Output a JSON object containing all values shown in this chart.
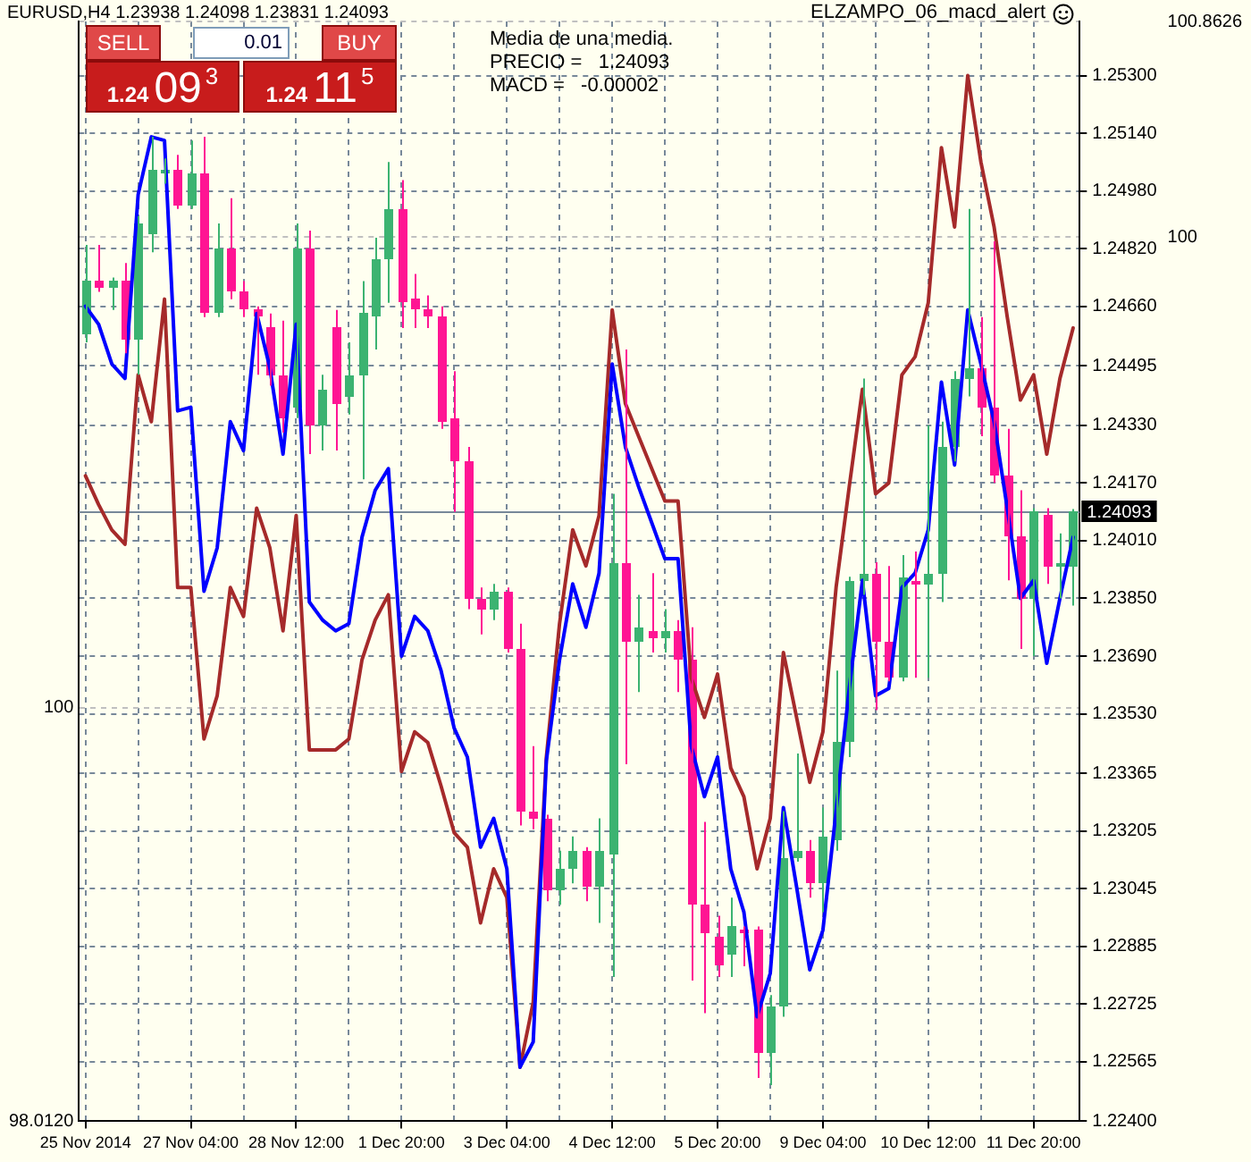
{
  "chart_data": {
    "type": "candlestick",
    "title": "EURUSD,H4 1.23938 1.24098 1.23831 1.24093",
    "categories": [
      "25 Nov 2014",
      null,
      null,
      null,
      null,
      null,
      null,
      null,
      "27 Nov 04:00",
      null,
      null,
      null,
      null,
      null,
      null,
      null,
      "28 Nov 12:00",
      null,
      null,
      null,
      null,
      null,
      null,
      null,
      "1 Dec 20:00",
      null,
      null,
      null,
      null,
      null,
      null,
      null,
      "3 Dec 04:00",
      null,
      null,
      null,
      null,
      null,
      null,
      null,
      "4 Dec 12:00",
      null,
      null,
      null,
      null,
      null,
      null,
      null,
      "5 Dec 20:00",
      null,
      null,
      null,
      null,
      null,
      null,
      null,
      "9 Dec 04:00",
      null,
      null,
      null,
      null,
      null,
      null,
      null,
      "10 Dec 12:00",
      null,
      null,
      null,
      null,
      null,
      null,
      null,
      "11 Dec 20:00",
      null,
      null,
      null
    ],
    "ohlc": [
      [
        1.2458,
        1.2483,
        1.2456,
        1.2473
      ],
      [
        1.2473,
        1.2483,
        1.247,
        1.2471
      ],
      [
        1.2471,
        1.2474,
        1.2465,
        1.2473
      ],
      [
        1.2473,
        1.2478,
        1.2453,
        1.2457
      ],
      [
        1.2457,
        1.2491,
        1.2447,
        1.2489
      ],
      [
        1.2486,
        1.2513,
        1.2481,
        1.2504
      ],
      [
        1.2503,
        1.2507,
        1.25,
        1.2504
      ],
      [
        1.2504,
        1.2508,
        1.2493,
        1.2494
      ],
      [
        1.2494,
        1.2512,
        1.2493,
        1.2503
      ],
      [
        1.2503,
        1.2513,
        1.2463,
        1.2464
      ],
      [
        1.2464,
        1.2489,
        1.2463,
        1.2482
      ],
      [
        1.2482,
        1.2496,
        1.2468,
        1.247
      ],
      [
        1.247,
        1.2473,
        1.2463,
        1.2465
      ],
      [
        1.2465,
        1.2466,
        1.2447,
        1.2463
      ],
      [
        1.246,
        1.2464,
        1.2444,
        1.2447
      ],
      [
        1.2447,
        1.2462,
        1.2431,
        1.2435
      ],
      [
        1.2438,
        1.2489,
        1.2435,
        1.2482
      ],
      [
        1.2482,
        1.2487,
        1.2425,
        1.2433
      ],
      [
        1.2433,
        1.2447,
        1.2426,
        1.2443
      ],
      [
        1.246,
        1.2465,
        1.2426,
        1.2439
      ],
      [
        1.2441,
        1.2456,
        1.2436,
        1.2447
      ],
      [
        1.2447,
        1.2473,
        1.2418,
        1.2464
      ],
      [
        1.2463,
        1.2485,
        1.2454,
        1.2479
      ],
      [
        1.2479,
        1.2506,
        1.2467,
        1.2493
      ],
      [
        1.2493,
        1.2501,
        1.246,
        1.2467
      ],
      [
        1.2468,
        1.2475,
        1.246,
        1.2465
      ],
      [
        1.2465,
        1.2469,
        1.246,
        1.2463
      ],
      [
        1.2463,
        1.2466,
        1.2432,
        1.2434
      ],
      [
        1.2435,
        1.2448,
        1.2409,
        1.2423
      ],
      [
        1.2423,
        1.2427,
        1.2382,
        1.2385
      ],
      [
        1.2385,
        1.2388,
        1.2375,
        1.2382
      ],
      [
        1.2382,
        1.2389,
        1.2379,
        1.2387
      ],
      [
        1.2387,
        1.2388,
        1.237,
        1.2371
      ],
      [
        1.2371,
        1.2378,
        1.2322,
        1.2326
      ],
      [
        1.2326,
        1.2344,
        1.2321,
        1.2324
      ],
      [
        1.2324,
        1.2325,
        1.2301,
        1.2304
      ],
      [
        1.2304,
        1.2315,
        1.23,
        1.231
      ],
      [
        1.231,
        1.2319,
        1.2306,
        1.2315
      ],
      [
        1.2315,
        1.2316,
        1.2301,
        1.2305
      ],
      [
        1.2305,
        1.2324,
        1.2295,
        1.2315
      ],
      [
        1.2314,
        1.2414,
        1.228,
        1.2395
      ],
      [
        1.2395,
        1.2454,
        1.2339,
        1.2373
      ],
      [
        1.2373,
        1.2386,
        1.2359,
        1.2377
      ],
      [
        1.2376,
        1.2392,
        1.237,
        1.2374
      ],
      [
        1.2374,
        1.2382,
        1.237,
        1.2376
      ],
      [
        1.2376,
        1.2379,
        1.2359,
        1.2368
      ],
      [
        1.2368,
        1.2377,
        1.2279,
        1.23
      ],
      [
        1.23,
        1.2323,
        1.227,
        1.2292
      ],
      [
        1.2291,
        1.2297,
        1.228,
        1.2283
      ],
      [
        1.2286,
        1.2302,
        1.228,
        1.2294
      ],
      [
        1.2293,
        1.2294,
        1.2283,
        1.2292
      ],
      [
        1.2293,
        1.2294,
        1.2252,
        1.2259
      ],
      [
        1.2259,
        1.2275,
        1.225,
        1.2272
      ],
      [
        1.2272,
        1.2326,
        1.2269,
        1.2313
      ],
      [
        1.2313,
        1.2342,
        1.2312,
        1.2315
      ],
      [
        1.2315,
        1.2318,
        1.2302,
        1.2306
      ],
      [
        1.2306,
        1.2327,
        1.2298,
        1.2319
      ],
      [
        1.2318,
        1.2365,
        1.2315,
        1.2345
      ],
      [
        1.2345,
        1.2391,
        1.2341,
        1.239
      ],
      [
        1.239,
        1.2446,
        1.2386,
        1.2392
      ],
      [
        1.2392,
        1.2395,
        1.2354,
        1.2373
      ],
      [
        1.2373,
        1.2394,
        1.2362,
        1.2363
      ],
      [
        1.2363,
        1.2397,
        1.2362,
        1.2391
      ],
      [
        1.239,
        1.2398,
        1.2363,
        1.2389
      ],
      [
        1.2389,
        1.2433,
        1.2363,
        1.2392
      ],
      [
        1.2392,
        1.2434,
        1.2384,
        1.2427
      ],
      [
        1.2427,
        1.2448,
        1.2423,
        1.2446
      ],
      [
        1.2446,
        1.2493,
        1.2441,
        1.2449
      ],
      [
        1.2449,
        1.2463,
        1.243,
        1.2438
      ],
      [
        1.2438,
        1.2484,
        1.2417,
        1.2419
      ],
      [
        1.2419,
        1.2432,
        1.239,
        1.2402
      ],
      [
        1.2402,
        1.2415,
        1.2371,
        1.2385
      ],
      [
        1.2385,
        1.241,
        1.2369,
        1.2409
      ],
      [
        1.2408,
        1.241,
        1.2389,
        1.2394
      ],
      [
        1.2394,
        1.2403,
        1.2385,
        1.2395
      ],
      [
        1.2394,
        1.24098,
        1.2383,
        1.24093
      ]
    ],
    "colors": [
      "#3cb371",
      "#ff1493",
      "#3cb371",
      "#ff1493",
      "#3cb371",
      "#3cb371",
      "#3cb371",
      "#ff1493",
      "#3cb371",
      "#ff1493",
      "#3cb371",
      "#ff1493",
      "#ff1493",
      "#ff1493",
      "#ff1493",
      "#ff1493",
      "#3cb371",
      "#ff1493",
      "#3cb371",
      "#ff1493",
      "#3cb371",
      "#3cb371",
      "#3cb371",
      "#3cb371",
      "#ff1493",
      "#ff1493",
      "#ff1493",
      "#ff1493",
      "#ff1493",
      "#ff1493",
      "#ff1493",
      "#3cb371",
      "#ff1493",
      "#ff1493",
      "#ff1493",
      "#ff1493",
      "#3cb371",
      "#3cb371",
      "#ff1493",
      "#3cb371",
      "#3cb371",
      "#ff1493",
      "#3cb371",
      "#ff1493",
      "#3cb371",
      "#ff1493",
      "#ff1493",
      "#ff1493",
      "#ff1493",
      "#3cb371",
      "#ff1493",
      "#ff1493",
      "#3cb371",
      "#3cb371",
      "#3cb371",
      "#ff1493",
      "#3cb371",
      "#3cb371",
      "#3cb371",
      "#3cb371",
      "#ff1493",
      "#ff1493",
      "#3cb371",
      "#ff1493",
      "#3cb371",
      "#3cb371",
      "#3cb371",
      "#3cb371",
      "#ff1493",
      "#ff1493",
      "#ff1493",
      "#ff1493",
      "#3cb371",
      "#ff1493",
      "#3cb371",
      "#3cb371"
    ],
    "series": [
      {
        "type": "line",
        "color": "#0000ff",
        "values": [
          1.2466,
          1.2461,
          1.245,
          1.2446,
          1.2497,
          1.2513,
          1.2512,
          1.2437,
          1.2438,
          1.2387,
          1.2399,
          1.2434,
          1.2426,
          1.2464,
          1.2449,
          1.2425,
          1.2461,
          1.2384,
          1.2379,
          1.2376,
          1.2378,
          1.2402,
          1.2415,
          1.2421,
          1.2369,
          1.238,
          1.2376,
          1.2365,
          1.2349,
          1.2341,
          1.2316,
          1.2324,
          1.231,
          1.2255,
          1.2262,
          1.234,
          1.2368,
          1.2389,
          1.2377,
          1.2392,
          1.245,
          1.2427,
          1.2416,
          1.2406,
          1.2396,
          1.2396,
          1.2344,
          1.233,
          1.2341,
          1.231,
          1.2298,
          1.2269,
          1.2281,
          1.2327,
          1.2305,
          1.2282,
          1.2293,
          1.2326,
          1.236,
          1.239,
          1.2358,
          1.236,
          1.2388,
          1.2392,
          1.2404,
          1.2445,
          1.2422,
          1.2465,
          1.245,
          1.2434,
          1.241,
          1.2385,
          1.239,
          1.2367,
          1.2385,
          1.2402
        ]
      },
      {
        "type": "line",
        "color": "#a52a2a",
        "values": [
          1.2419,
          1.2411,
          1.2404,
          1.24,
          1.2447,
          1.2434,
          1.2468,
          1.2388,
          1.2388,
          1.2346,
          1.2358,
          1.2388,
          1.238,
          1.241,
          1.2399,
          1.2376,
          1.2408,
          1.2343,
          1.2343,
          1.2343,
          1.2346,
          1.2368,
          1.2379,
          1.2386,
          1.2337,
          1.2348,
          1.2345,
          1.2333,
          1.232,
          1.2316,
          1.2295,
          1.231,
          1.2302,
          1.2255,
          1.2273,
          1.2341,
          1.2378,
          1.2404,
          1.2394,
          1.2408,
          1.2465,
          1.2439,
          1.243,
          1.2421,
          1.2412,
          1.2412,
          1.2363,
          1.2352,
          1.2364,
          1.2338,
          1.233,
          1.231,
          1.2324,
          1.237,
          1.2352,
          1.2334,
          1.2348,
          1.2388,
          1.2416,
          1.2443,
          1.2414,
          1.2417,
          1.2447,
          1.2452,
          1.2467,
          1.251,
          1.2488,
          1.253,
          1.2506,
          1.2488,
          1.2463,
          1.244,
          1.2447,
          1.2425,
          1.2446,
          1.246
        ]
      }
    ],
    "ylim": [
      1.224,
      1.2545
    ],
    "yticks": [
      {
        "value": 1.224,
        "label": "1.22400"
      },
      1.22565,
      1.22725,
      1.22885,
      1.23045,
      1.23205,
      1.23365,
      {
        "value": 1.2353,
        "label": "1.23530"
      },
      {
        "value": 1.2369,
        "label": "1.23690"
      },
      {
        "value": 1.2385,
        "label": "1.23850"
      },
      {
        "value": 1.2401,
        "label": "1.24010"
      },
      {
        "value": 1.2417,
        "label": "1.24170"
      },
      {
        "value": 1.2433,
        "label": "1.24330"
      },
      1.24495,
      {
        "value": 1.2466,
        "label": "1.24660"
      },
      {
        "value": 1.2482,
        "label": "1.24820"
      },
      {
        "value": 1.2498,
        "label": "1.24980"
      },
      {
        "value": 1.2514,
        "label": "1.25140"
      },
      {
        "value": 1.253,
        "label": "1.25300"
      }
    ],
    "y2lim": [
      96.46,
      100.8626
    ],
    "y2ticks": [
      100,
      100.8626
    ],
    "y3lim": [
      98.012,
      103.3
    ],
    "y3ticks": [
      {
        "value": 98.012,
        "label": "98.0120"
      },
      100
    ],
    "ref_lines": [
      {
        "axis": "y",
        "value": 1.24093,
        "label": "1.24093",
        "color": "#778899"
      }
    ],
    "annotations": [
      "ELZAMPO_06_macd_alert",
      "Media de una media.",
      "PRECIO =   1.24093",
      "MACD =   -0.00002",
      "SELL",
      "0.01",
      "BUY",
      "1.24",
      "09",
      "3",
      "1.24",
      "11",
      "5"
    ],
    "grid": true
  }
}
